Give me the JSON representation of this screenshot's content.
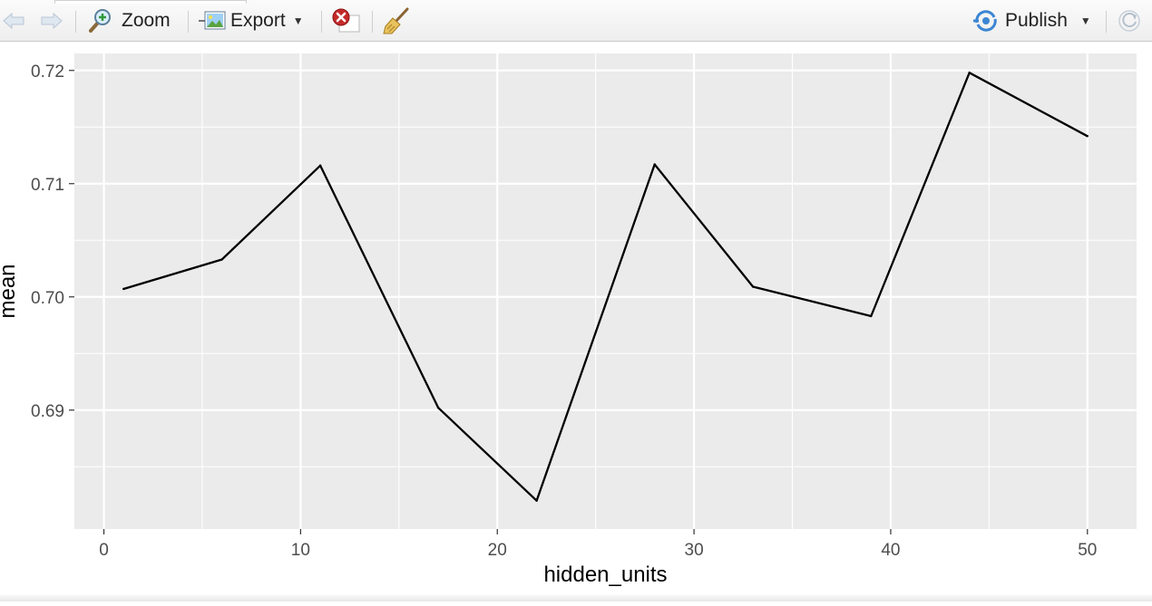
{
  "toolbar": {
    "zoom_label": "Zoom",
    "export_label": "Export",
    "publish_label": "Publish"
  },
  "chart_data": {
    "type": "line",
    "xlabel": "hidden_units",
    "ylabel": "mean",
    "xlim": [
      -1.5,
      52.5
    ],
    "ylim": [
      0.6795,
      0.7215
    ],
    "xticks": [
      0,
      10,
      20,
      30,
      40,
      50
    ],
    "yticks": [
      0.69,
      0.7,
      0.71,
      0.72
    ],
    "ytick_labels": [
      "0.69",
      "0.70",
      "0.71",
      "0.72"
    ],
    "grid": true,
    "series": [
      {
        "x": [
          1,
          6,
          11,
          17,
          22,
          28,
          33,
          39,
          44,
          50
        ],
        "y": [
          0.7007,
          0.7033,
          0.7116,
          0.6902,
          0.682,
          0.7117,
          0.7009,
          0.6983,
          0.7198,
          0.7142
        ],
        "color": "#000000"
      }
    ]
  }
}
